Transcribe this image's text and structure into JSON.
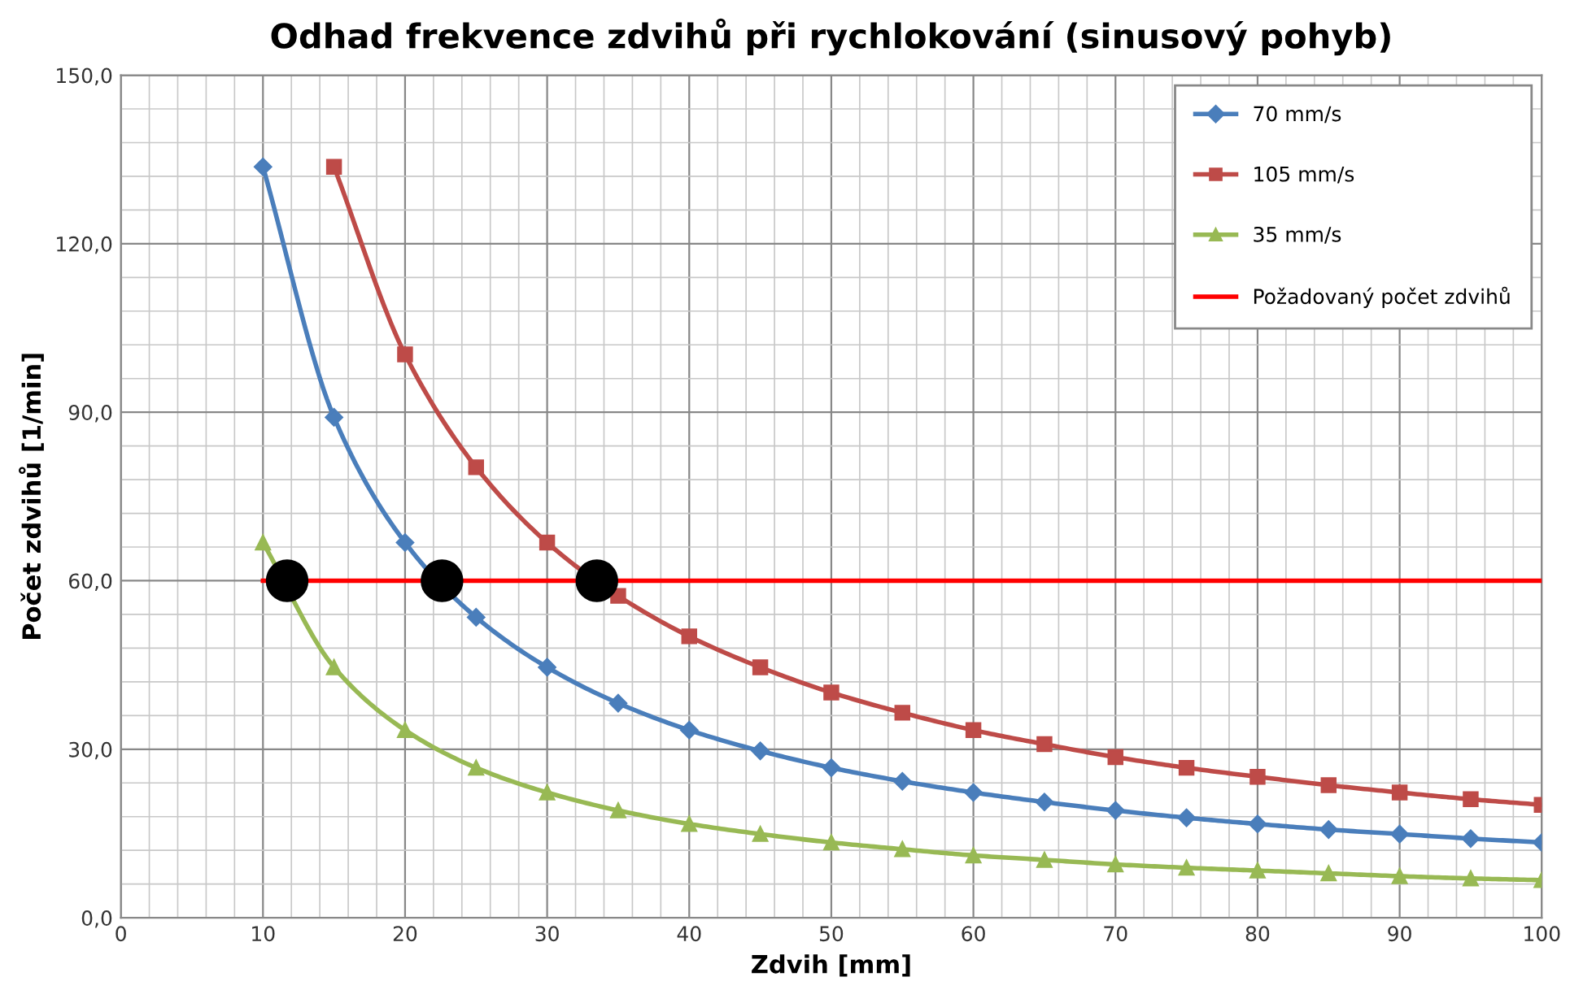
{
  "chart_data": {
    "type": "line",
    "title": "Odhad frekvence zdvihů při rychlokování (sinusový pohyb)",
    "xlabel": "Zdvih [mm]",
    "ylabel": "Počet zdvihů [1/min]",
    "xlim": [
      0,
      100
    ],
    "xticks": [
      0,
      10,
      20,
      30,
      40,
      50,
      60,
      70,
      80,
      90,
      100
    ],
    "ylim": [
      0,
      150
    ],
    "yticks": [
      {
        "value": 0,
        "label": "0,0"
      },
      {
        "value": 30,
        "label": "30,0"
      },
      {
        "value": 60,
        "label": "60,0"
      },
      {
        "value": 90,
        "label": "90,0"
      },
      {
        "value": 120,
        "label": "120,0"
      },
      {
        "value": 150,
        "label": "150,0"
      }
    ],
    "grid": true,
    "legend": "top right",
    "series": [
      {
        "name": "70 mm/s",
        "color": "#4a7ebb",
        "marker": "diamond",
        "x": [
          10,
          15,
          20,
          25,
          30,
          35,
          40,
          45,
          50,
          55,
          60,
          65,
          70,
          75,
          80,
          85,
          90,
          95,
          100
        ],
        "values": [
          133.7,
          89.1,
          66.8,
          53.5,
          44.6,
          38.2,
          33.4,
          29.7,
          26.7,
          24.3,
          22.3,
          20.6,
          19.1,
          17.8,
          16.7,
          15.7,
          14.9,
          14.1,
          13.4
        ]
      },
      {
        "name": "105 mm/s",
        "color": "#be4b48",
        "marker": "square",
        "x": [
          15,
          20,
          25,
          30,
          35,
          40,
          45,
          50,
          55,
          60,
          65,
          70,
          75,
          80,
          85,
          90,
          95,
          100
        ],
        "values": [
          133.7,
          100.3,
          80.2,
          66.8,
          57.3,
          50.1,
          44.6,
          40.1,
          36.5,
          33.4,
          30.9,
          28.6,
          26.7,
          25.1,
          23.6,
          22.3,
          21.1,
          20.1
        ]
      },
      {
        "name": "35 mm/s",
        "color": "#98b954",
        "marker": "triangle",
        "x": [
          10,
          15,
          20,
          25,
          30,
          35,
          40,
          45,
          50,
          55,
          60,
          65,
          70,
          75,
          80,
          85,
          90,
          95,
          100
        ],
        "values": [
          66.8,
          44.6,
          33.4,
          26.7,
          22.3,
          19.1,
          16.7,
          14.9,
          13.4,
          12.2,
          11.1,
          10.3,
          9.5,
          8.9,
          8.4,
          7.9,
          7.4,
          7.0,
          6.7
        ]
      },
      {
        "name": "Požadovaný počet zdvihů",
        "color": "#ff0000",
        "marker": "none",
        "x": [
          10,
          100
        ],
        "values": [
          60,
          60
        ]
      },
      {
        "type": "scatter",
        "color": "#000000",
        "marker": "circle",
        "x": [
          11.7,
          22.6,
          33.5
        ],
        "values": [
          60,
          60,
          60
        ]
      }
    ]
  }
}
